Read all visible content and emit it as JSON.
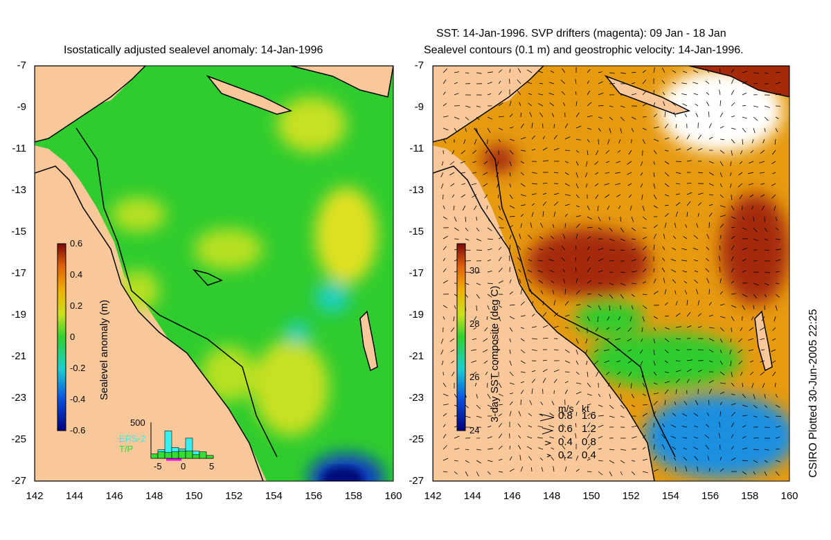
{
  "left_panel": {
    "title": "Isostatically adjusted sealevel anomaly: 14-Jan-1996",
    "colorbar": {
      "label": "Sealevel anomaly (m)",
      "ticks": [
        "0.6",
        "0.4",
        "0.2",
        "0",
        "-0.2",
        "-0.4",
        "-0.6"
      ]
    },
    "histogram": {
      "max_label": "500",
      "x_ticks": [
        "-5",
        "0",
        "5"
      ],
      "legend": [
        "ERS-2",
        "T/P"
      ],
      "bars_ers2": [
        60,
        120,
        380,
        150,
        130,
        280,
        100,
        40,
        30
      ],
      "bars_tp": [
        60,
        90,
        80,
        90,
        100,
        100,
        50,
        90,
        40
      ],
      "colors": {
        "ers2": "#36f0f0",
        "tp": "#33dd33"
      }
    }
  },
  "right_panel": {
    "title_line1": "SST: 14-Jan-1996. SVP drifters (magenta): 09 Jan - 18 Jan",
    "title_line2": "Sealevel contours (0.1 m) and geostrophic velocity: 14-Jan-1996.",
    "colorbar": {
      "label": "3-day SST composite (deg C)",
      "ticks": [
        "30",
        "28",
        "26",
        "24"
      ]
    },
    "velocity_legend": {
      "header_ms": "m/s",
      "header_kt": "kt",
      "rows": [
        {
          "ms": "0.8",
          "kt": "1.6"
        },
        {
          "ms": "0.6",
          "kt": "1.2"
        },
        {
          "ms": "0.4",
          "kt": "0.8"
        },
        {
          "ms": "0.2",
          "kt": "0.4"
        }
      ]
    }
  },
  "axes": {
    "y_ticks": [
      "-7",
      "-9",
      "-11",
      "-13",
      "-15",
      "-17",
      "-19",
      "-21",
      "-23",
      "-25",
      "-27"
    ],
    "x_ticks": [
      "142",
      "144",
      "146",
      "148",
      "150",
      "152",
      "154",
      "156",
      "158",
      "160"
    ]
  },
  "credit": "CSIRO Plotted 30-Jun-2005 22:25",
  "colors": {
    "land": "#f9c89a",
    "sea_green": "#2fcc2f",
    "warm_sst": "#e69a10",
    "hot_sst": "#a52a0a"
  }
}
